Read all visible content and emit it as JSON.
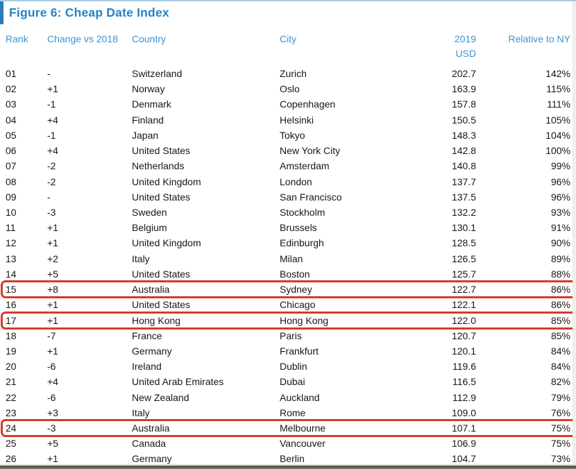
{
  "page": {
    "title": "Figure 6: Cheap Date Index"
  },
  "colors": {
    "title_blue": "#2383c6",
    "header_blue": "#3c94d2",
    "title_bar_blue": "#2a7cba",
    "top_line_blue": "#a9cbe6",
    "highlight_red": "#d63a2c",
    "body_text": "#161616"
  },
  "table": {
    "headers": {
      "rank": "Rank",
      "change": "Change vs 2018",
      "country": "Country",
      "city": "City",
      "usd_line1": "2019",
      "usd_line2": "USD",
      "relative": "Relative to NY"
    },
    "rows": [
      {
        "rank": "01",
        "change": "-",
        "country": "Switzerland",
        "city": "Zurich",
        "usd": "202.7",
        "relative": "142%",
        "highlight": false
      },
      {
        "rank": "02",
        "change": "+1",
        "country": "Norway",
        "city": "Oslo",
        "usd": "163.9",
        "relative": "115%",
        "highlight": false
      },
      {
        "rank": "03",
        "change": "-1",
        "country": "Denmark",
        "city": "Copenhagen",
        "usd": "157.8",
        "relative": "111%",
        "highlight": false
      },
      {
        "rank": "04",
        "change": "+4",
        "country": "Finland",
        "city": "Helsinki",
        "usd": "150.5",
        "relative": "105%",
        "highlight": false
      },
      {
        "rank": "05",
        "change": "-1",
        "country": "Japan",
        "city": "Tokyo",
        "usd": "148.3",
        "relative": "104%",
        "highlight": false
      },
      {
        "rank": "06",
        "change": "+4",
        "country": "United States",
        "city": "New York City",
        "usd": "142.8",
        "relative": "100%",
        "highlight": false
      },
      {
        "rank": "07",
        "change": "-2",
        "country": "Netherlands",
        "city": "Amsterdam",
        "usd": "140.8",
        "relative": "99%",
        "highlight": false
      },
      {
        "rank": "08",
        "change": "-2",
        "country": "United Kingdom",
        "city": "London",
        "usd": "137.7",
        "relative": "96%",
        "highlight": false
      },
      {
        "rank": "09",
        "change": "-",
        "country": "United States",
        "city": "San Francisco",
        "usd": "137.5",
        "relative": "96%",
        "highlight": false
      },
      {
        "rank": "10",
        "change": "-3",
        "country": "Sweden",
        "city": "Stockholm",
        "usd": "132.2",
        "relative": "93%",
        "highlight": false
      },
      {
        "rank": "11",
        "change": "+1",
        "country": "Belgium",
        "city": "Brussels",
        "usd": "130.1",
        "relative": "91%",
        "highlight": false
      },
      {
        "rank": "12",
        "change": "+1",
        "country": "United Kingdom",
        "city": "Edinburgh",
        "usd": "128.5",
        "relative": "90%",
        "highlight": false
      },
      {
        "rank": "13",
        "change": "+2",
        "country": "Italy",
        "city": "Milan",
        "usd": "126.5",
        "relative": "89%",
        "highlight": false
      },
      {
        "rank": "14",
        "change": "+5",
        "country": "United States",
        "city": "Boston",
        "usd": "125.7",
        "relative": "88%",
        "highlight": false
      },
      {
        "rank": "15",
        "change": "+8",
        "country": "Australia",
        "city": "Sydney",
        "usd": "122.7",
        "relative": "86%",
        "highlight": true
      },
      {
        "rank": "16",
        "change": "+1",
        "country": "United States",
        "city": "Chicago",
        "usd": "122.1",
        "relative": "86%",
        "highlight": false
      },
      {
        "rank": "17",
        "change": "+1",
        "country": "Hong Kong",
        "city": "Hong Kong",
        "usd": "122.0",
        "relative": "85%",
        "highlight": true
      },
      {
        "rank": "18",
        "change": "-7",
        "country": "France",
        "city": "Paris",
        "usd": "120.7",
        "relative": "85%",
        "highlight": false
      },
      {
        "rank": "19",
        "change": "+1",
        "country": "Germany",
        "city": "Frankfurt",
        "usd": "120.1",
        "relative": "84%",
        "highlight": false
      },
      {
        "rank": "20",
        "change": "-6",
        "country": "Ireland",
        "city": "Dublin",
        "usd": "119.6",
        "relative": "84%",
        "highlight": false
      },
      {
        "rank": "21",
        "change": "+4",
        "country": "United Arab Emirates",
        "city": "Dubai",
        "usd": "116.5",
        "relative": "82%",
        "highlight": false
      },
      {
        "rank": "22",
        "change": "-6",
        "country": "New Zealand",
        "city": "Auckland",
        "usd": "112.9",
        "relative": "79%",
        "highlight": false
      },
      {
        "rank": "23",
        "change": "+3",
        "country": "Italy",
        "city": "Rome",
        "usd": "109.0",
        "relative": "76%",
        "highlight": false
      },
      {
        "rank": "24",
        "change": "-3",
        "country": "Australia",
        "city": "Melbourne",
        "usd": "107.1",
        "relative": "75%",
        "highlight": true
      },
      {
        "rank": "25",
        "change": "+5",
        "country": "Canada",
        "city": "Vancouver",
        "usd": "106.9",
        "relative": "75%",
        "highlight": false
      },
      {
        "rank": "26",
        "change": "+1",
        "country": "Germany",
        "city": "Berlin",
        "usd": "104.7",
        "relative": "73%",
        "highlight": false
      }
    ]
  }
}
